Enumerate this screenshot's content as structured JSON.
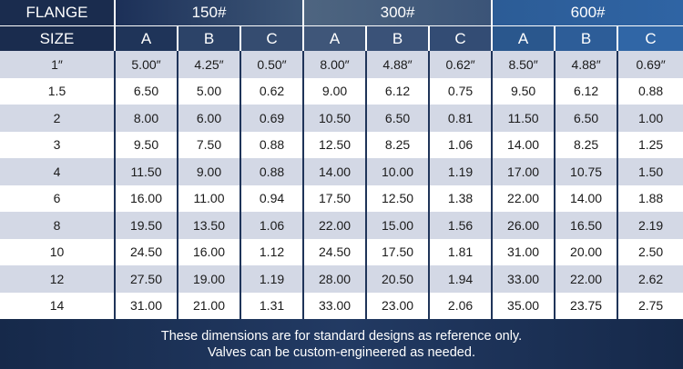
{
  "header": {
    "flange_label": "FLANGE",
    "size_label": "SIZE",
    "classes": [
      "150#",
      "300#",
      "600#"
    ],
    "dims": [
      "A",
      "B",
      "C",
      "A",
      "B",
      "C",
      "A",
      "B",
      "C"
    ]
  },
  "rows": [
    {
      "size": "1″",
      "vals": [
        "5.00″",
        "4.25″",
        "0.50″",
        "8.00″",
        "4.88″",
        "0.62″",
        "8.50″",
        "4.88″",
        "0.69″"
      ]
    },
    {
      "size": "1.5",
      "vals": [
        "6.50",
        "5.00",
        "0.62",
        "9.00",
        "6.12",
        "0.75",
        "9.50",
        "6.12",
        "0.88"
      ]
    },
    {
      "size": "2",
      "vals": [
        "8.00",
        "6.00",
        "0.69",
        "10.50",
        "6.50",
        "0.81",
        "11.50",
        "6.50",
        "1.00"
      ]
    },
    {
      "size": "3",
      "vals": [
        "9.50",
        "7.50",
        "0.88",
        "12.50",
        "8.25",
        "1.06",
        "14.00",
        "8.25",
        "1.25"
      ]
    },
    {
      "size": "4",
      "vals": [
        "11.50",
        "9.00",
        "0.88",
        "14.00",
        "10.00",
        "1.19",
        "17.00",
        "10.75",
        "1.50"
      ]
    },
    {
      "size": "6",
      "vals": [
        "16.00",
        "11.00",
        "0.94",
        "17.50",
        "12.50",
        "1.38",
        "22.00",
        "14.00",
        "1.88"
      ]
    },
    {
      "size": "8",
      "vals": [
        "19.50",
        "13.50",
        "1.06",
        "22.00",
        "15.00",
        "1.56",
        "26.00",
        "16.50",
        "2.19"
      ]
    },
    {
      "size": "10",
      "vals": [
        "24.50",
        "16.00",
        "1.12",
        "24.50",
        "17.50",
        "1.81",
        "31.00",
        "20.00",
        "2.50"
      ]
    },
    {
      "size": "12",
      "vals": [
        "27.50",
        "19.00",
        "1.19",
        "28.00",
        "20.50",
        "1.94",
        "33.00",
        "22.00",
        "2.62"
      ]
    },
    {
      "size": "14",
      "vals": [
        "31.00",
        "21.00",
        "1.31",
        "33.00",
        "23.00",
        "2.06",
        "35.00",
        "23.75",
        "2.75"
      ]
    }
  ],
  "footer": {
    "line1": "These dimensions are for standard designs as reference only.",
    "line2": "Valves can be custom-engineered as needed."
  },
  "colors": {
    "header_dark": "#1a2c4e",
    "header_mid": "#3d5677",
    "header_blue": "#2f64a4",
    "row_alt": "#d3d8e5",
    "footer_bg": "#1c3157"
  }
}
